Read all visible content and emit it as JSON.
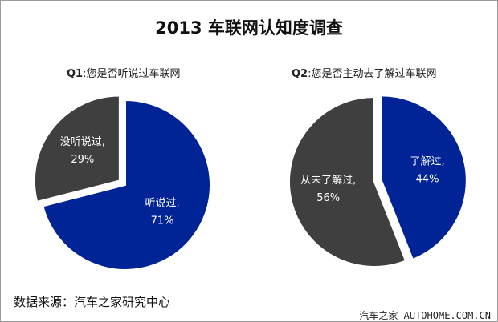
{
  "chart_data": [
    {
      "type": "pie",
      "title": "2013 车联网认知度调查",
      "subtitle_prefix": "Q1",
      "subtitle": ":您是否听说过车联网",
      "slices": [
        {
          "label": "听说过",
          "value": 71,
          "color": "#002395"
        },
        {
          "label": "没听说过",
          "value": 29,
          "color": "#3f3f3f",
          "exploded": true
        }
      ]
    },
    {
      "type": "pie",
      "subtitle_prefix": "Q2",
      "subtitle": ":您是否主动去了解过车联网",
      "slices": [
        {
          "label": "了解过",
          "value": 44,
          "color": "#002395",
          "exploded": true
        },
        {
          "label": "从未了解过",
          "value": 56,
          "color": "#3f3f3f"
        }
      ]
    }
  ],
  "title": "2013 车联网认知度调查",
  "source": "数据来源：汽车之家研究中心",
  "watermark": "汽车之家 AUTOHOME.COM.CN"
}
